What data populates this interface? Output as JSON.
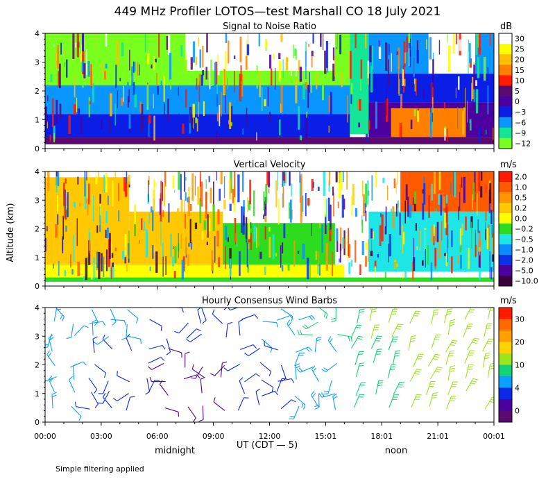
{
  "figure": {
    "title": "449 MHz Profiler LOTOS—test Marshall CO 18 July 2021",
    "ylabel": "Altitude (km)",
    "xlabel": "UT  (CDT — 5)",
    "day_labels": [
      "midnight",
      "noon"
    ],
    "footnote": "Simple filtering applied",
    "xlim": [
      0,
      24
    ],
    "x_ticks": [
      0,
      3,
      6,
      9,
      12,
      15,
      18,
      21,
      24
    ],
    "x_tick_labels": [
      "00:00",
      "03:00",
      "06:00",
      "09:00",
      "12:00",
      "15:01",
      "18:01",
      "21:01",
      "00:01"
    ],
    "ylim": [
      0,
      4
    ],
    "y_tick_labels": [
      "0",
      "1",
      "2",
      "3",
      "4"
    ]
  },
  "chart_data": [
    {
      "type": "heatmap",
      "title": "Signal to Noise Ratio",
      "unit": "dB",
      "colorbar_labels": [
        "30",
        "25",
        "20",
        "15",
        "10",
        "5",
        "0",
        "−3",
        "−6",
        "−9",
        "−12"
      ],
      "colorbar_colors": [
        "#ffffff",
        "#ffff00",
        "#ffc000",
        "#ff7f00",
        "#ff1a00",
        "#5a0a6e",
        "#4b009f",
        "#0a1ee6",
        "#0a96ff",
        "#14e696",
        "#78ff1e"
      ],
      "xlim": [
        0,
        24
      ],
      "ylim": [
        0,
        4
      ],
      "bands": [
        {
          "label": "0",
          "y0": 0.15,
          "y1": 0.4,
          "x0": 0.0,
          "x1": 24.0,
          "color": "#5a0a6e"
        },
        {
          "label": "-3",
          "y0": 0.4,
          "y1": 1.2,
          "x0": 0.0,
          "x1": 16.3,
          "color": "#0a1ee6"
        },
        {
          "label": "-6",
          "y0": 1.2,
          "y1": 2.2,
          "x0": 0.0,
          "x1": 16.3,
          "color": "#0a96ff"
        },
        {
          "label": "-12",
          "y0": 2.2,
          "y1": 4.0,
          "x0": 0.0,
          "x1": 16.3,
          "color": "#78ff1e"
        },
        {
          "label": "30",
          "y0": 2.7,
          "y1": 4.0,
          "x0": 7.5,
          "x1": 15.5,
          "color": "#ffffff"
        },
        {
          "label": "-9",
          "y0": 0.5,
          "y1": 4.0,
          "x0": 16.3,
          "x1": 17.3,
          "color": "#14e696"
        },
        {
          "label": "0",
          "y0": 0.4,
          "y1": 1.6,
          "x0": 17.3,
          "x1": 24.0,
          "color": "#4b009f"
        },
        {
          "label": "15",
          "y0": 0.4,
          "y1": 1.4,
          "x0": 18.5,
          "x1": 22.5,
          "color": "#ff7f00"
        },
        {
          "label": "-3",
          "y0": 1.6,
          "y1": 2.6,
          "x0": 17.3,
          "x1": 24.0,
          "color": "#0a1ee6"
        },
        {
          "label": "-6",
          "y0": 2.6,
          "y1": 4.0,
          "x0": 17.3,
          "x1": 24.0,
          "color": "#0a96ff"
        },
        {
          "label": "30",
          "y0": 2.6,
          "y1": 4.0,
          "x0": 20.5,
          "x1": 23.0,
          "color": "#ffffff"
        }
      ]
    },
    {
      "type": "heatmap",
      "title": "Vertical Velocity",
      "unit": "m/s",
      "colorbar_labels": [
        "2.0",
        "1.0",
        "0.5",
        "0.2",
        "0.0",
        "−0.2",
        "−0.5",
        "−1.0",
        "−2.0",
        "−5.0",
        "−10.0"
      ],
      "colorbar_colors": [
        "#ff1a00",
        "#ff5a00",
        "#ff9600",
        "#ffc800",
        "#ffff00",
        "#2ddc1e",
        "#1ee6e6",
        "#0a8cff",
        "#0a32e6",
        "#4b00a0",
        "#3c003c"
      ],
      "xlim": [
        0,
        24
      ],
      "ylim": [
        0,
        4
      ],
      "bands": [
        {
          "label": "0.0",
          "y0": 0.15,
          "y1": 0.75,
          "x0": 0.0,
          "x1": 16.0,
          "color": "#ffff00"
        },
        {
          "label": "-0.2",
          "y0": 0.15,
          "y1": 0.3,
          "x0": 0.0,
          "x1": 24.0,
          "color": "#2ddc1e"
        },
        {
          "label": "0.2",
          "y0": 0.75,
          "y1": 3.8,
          "x0": 0.0,
          "x1": 4.5,
          "color": "#ffc800"
        },
        {
          "label": "0.2",
          "y0": 0.75,
          "y1": 2.6,
          "x0": 4.5,
          "x1": 9.5,
          "color": "#ffc800"
        },
        {
          "label": "-0.2",
          "y0": 0.75,
          "y1": 2.2,
          "x0": 9.5,
          "x1": 15.5,
          "color": "#2ddc1e"
        },
        {
          "label": "-0.5",
          "y0": 0.5,
          "y1": 2.6,
          "x0": 17.3,
          "x1": 24.0,
          "color": "#1ee6e6"
        },
        {
          "label": "1.0",
          "y0": 2.6,
          "y1": 4.0,
          "x0": 19.0,
          "x1": 24.0,
          "color": "#ff5a00"
        }
      ]
    },
    {
      "type": "scatter",
      "subtype": "wind_barbs",
      "title": "Hourly Consensus Wind Barbs",
      "unit": "m/s",
      "colorbar_labels": [
        "30",
        "20",
        "10",
        "4",
        "0"
      ],
      "colorbar_colors": [
        "#ff1a00",
        "#ff6a00",
        "#ffa000",
        "#ffd200",
        "#9be61e",
        "#14d278",
        "#0aa0ff",
        "#0a28e6",
        "#4b009f",
        "#5a0a6e"
      ],
      "xlim": [
        0,
        24
      ],
      "ylim": [
        0,
        4
      ],
      "barb_times_hours": [
        0.5,
        1.5,
        2.5,
        3.5,
        4.5,
        5.5,
        6.5,
        7.5,
        8.5,
        9.5,
        10.5,
        11.5,
        12.5,
        13.5,
        14.5,
        15.5,
        16.5,
        17.5,
        18.5,
        19.5,
        20.5,
        21.5,
        22.5,
        23.5
      ],
      "barb_altitudes_km": [
        0.5,
        1.0,
        1.5,
        2.0,
        2.5,
        3.0,
        3.5,
        4.0
      ],
      "speed_by_hour_ms": [
        6,
        5,
        3,
        3,
        3,
        2,
        1,
        1,
        1,
        1,
        2,
        3,
        4,
        6,
        7,
        7,
        9,
        10,
        11,
        12,
        12,
        13,
        13,
        12
      ]
    }
  ]
}
